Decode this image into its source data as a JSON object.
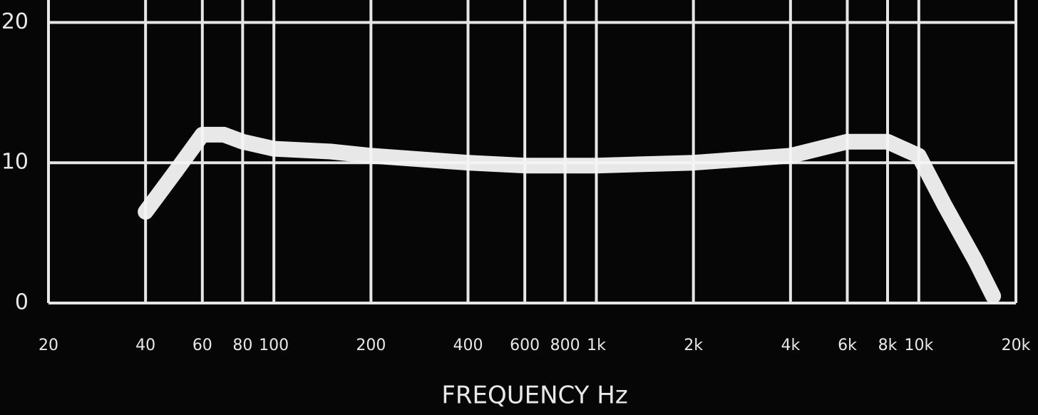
{
  "chart_data": {
    "type": "line",
    "x_label": "FREQUENCY Hz",
    "x": [
      40,
      50,
      60,
      70,
      80,
      100,
      150,
      200,
      400,
      600,
      1000,
      2000,
      4000,
      6000,
      8000,
      10000,
      12000,
      15000,
      17000
    ],
    "series": [
      {
        "color": "#f4f4f4",
        "values": [
          6.5,
          9.5,
          12,
          12,
          11.5,
          11,
          10.8,
          10.5,
          10,
          9.8,
          9.8,
          10,
          10.5,
          11.5,
          11.5,
          10.5,
          7,
          3,
          0.5
        ]
      }
    ],
    "x_log": true,
    "xlim": [
      20,
      20000
    ],
    "xticks": [
      20,
      40,
      60,
      80,
      100,
      200,
      400,
      600,
      800,
      {
        "value": 1000,
        "label": "1k"
      },
      {
        "value": 2000,
        "label": "2k"
      },
      {
        "value": 4000,
        "label": "4k"
      },
      {
        "value": 6000,
        "label": "6k"
      },
      {
        "value": 8000,
        "label": "8k"
      },
      {
        "value": 10000,
        "label": "10k"
      },
      {
        "value": 20000,
        "label": "20k"
      }
    ],
    "ylim": [
      0,
      21.6
    ],
    "yticks": [
      0,
      10,
      20
    ],
    "grid": true
  }
}
